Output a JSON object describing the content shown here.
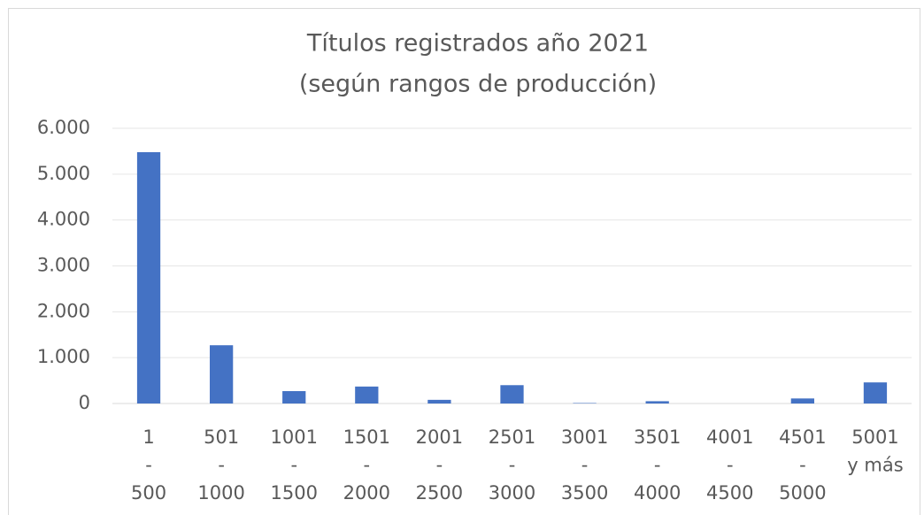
{
  "chart_data": {
    "type": "bar",
    "title": [
      "Títulos registrados año 2021",
      "(según rangos de producción)"
    ],
    "categories": [
      [
        "1",
        "-",
        "500"
      ],
      [
        "501",
        "-",
        "1000"
      ],
      [
        "1001",
        "-",
        "1500"
      ],
      [
        "1501",
        "-",
        "2000"
      ],
      [
        "2001",
        "-",
        "2500"
      ],
      [
        "2501",
        "-",
        "3000"
      ],
      [
        "3001",
        "-",
        "3500"
      ],
      [
        "3501",
        "-",
        "4000"
      ],
      [
        "4001",
        "-",
        "4500"
      ],
      [
        "4501",
        "-",
        "5000"
      ],
      [
        "5001",
        "y más"
      ]
    ],
    "values": [
      5480,
      1270,
      270,
      370,
      80,
      400,
      10,
      50,
      0,
      110,
      460
    ],
    "color": "#4472c4",
    "ylim": [
      0,
      6000
    ],
    "yticks": [
      0,
      {
        "value": 1000,
        "label": "1.000"
      },
      {
        "value": 2000,
        "label": "2.000"
      },
      {
        "value": 3000,
        "label": "3.000"
      },
      {
        "value": 4000,
        "label": "4.000"
      },
      {
        "value": 5000,
        "label": "5.000"
      },
      {
        "value": 6000,
        "label": "6.000"
      }
    ],
    "grid": true
  }
}
